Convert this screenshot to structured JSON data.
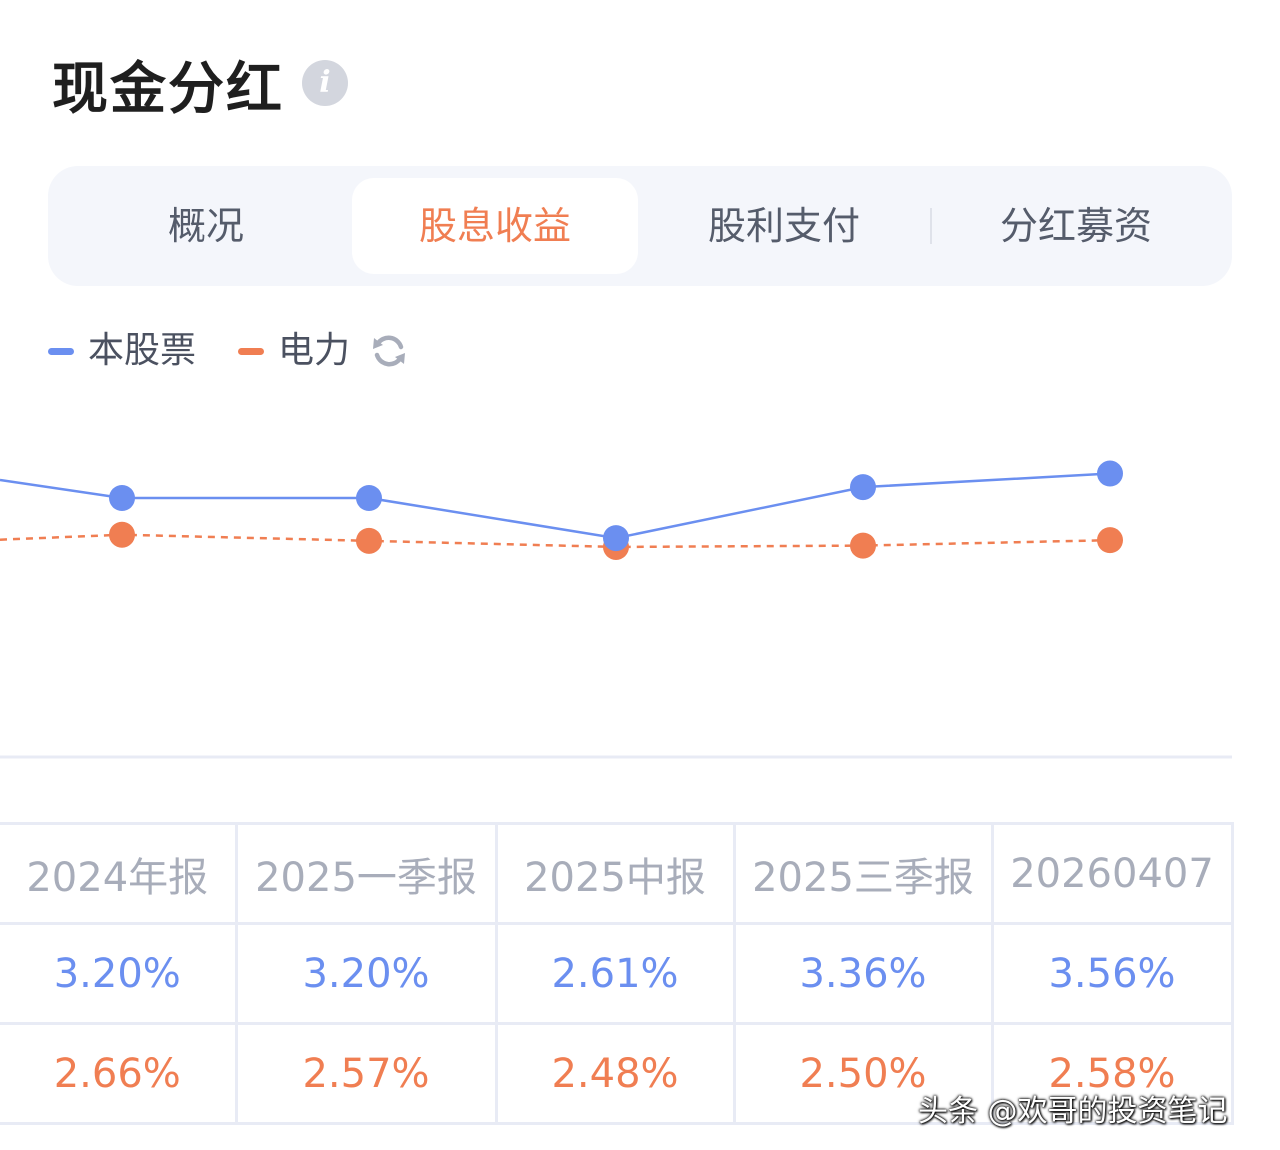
{
  "header": {
    "title": "现金分红",
    "info_icon": "info-icon"
  },
  "tabs": [
    {
      "label": "概况",
      "active": false
    },
    {
      "label": "股息收益",
      "active": true
    },
    {
      "label": "股利支付",
      "active": false
    },
    {
      "label": "分红募资",
      "active": false
    }
  ],
  "legend": {
    "items": [
      {
        "label": "本股票",
        "color": "#6b8ff0"
      },
      {
        "label": "电力",
        "color": "#f07e52"
      }
    ],
    "refresh_icon": "refresh-icon"
  },
  "chart_data": {
    "type": "line",
    "categories": [
      "2024年报",
      "2025一季报",
      "2025中报",
      "2025三季报",
      "20260407"
    ],
    "series": [
      {
        "name": "本股票",
        "values": [
          3.2,
          3.2,
          2.61,
          3.36,
          3.56
        ],
        "labels": [
          "3.20%",
          "3.20%",
          "2.61%",
          "3.36%",
          "3.56%"
        ],
        "color": "#6b8ff0",
        "dashed": false
      },
      {
        "name": "电力",
        "values": [
          2.66,
          2.57,
          2.48,
          2.5,
          2.58
        ],
        "labels": [
          "2.66%",
          "2.57%",
          "2.48%",
          "2.50%",
          "2.58%"
        ],
        "color": "#f07e52",
        "dashed": true
      }
    ],
    "grid": false
  },
  "watermark": "头条 @欢哥的投资笔记"
}
